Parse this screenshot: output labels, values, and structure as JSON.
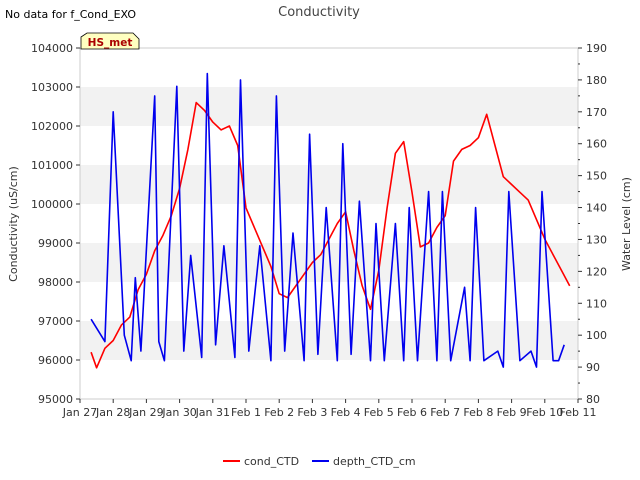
{
  "header": {
    "no_data_note": "No data for f_Cond_EXO",
    "badge": "HS_met"
  },
  "colors": {
    "cond": "#ff0000",
    "depth": "#0000ee",
    "band": "#f2f2f2",
    "badge_fill": "#ffffc0",
    "badge_text": "#aa0000"
  },
  "chart_data": {
    "type": "line",
    "title": "Conductivity",
    "xlabel": "",
    "ylabel": "Conductivity (uS/cm)",
    "ylabel_right": "Water Level (cm)",
    "xlim": [
      "2024-01-27",
      "2024-02-11"
    ],
    "ylim_left": [
      95000,
      104000
    ],
    "ylim_right": [
      80,
      190
    ],
    "x_ticks": [
      "Jan 27",
      "Jan 28",
      "Jan 29",
      "Jan 30",
      "Jan 31",
      "Feb 1",
      "Feb 2",
      "Feb 3",
      "Feb 4",
      "Feb 5",
      "Feb 6",
      "Feb 7",
      "Feb 8",
      "Feb 9",
      "Feb 10",
      "Feb 11"
    ],
    "y_ticks_left": [
      "95000",
      "96000",
      "97000",
      "98000",
      "99000",
      "100000",
      "101000",
      "102000",
      "103000",
      "104000"
    ],
    "y_ticks_right": [
      "80",
      "90",
      "100",
      "110",
      "120",
      "130",
      "140",
      "150",
      "160",
      "170",
      "180",
      "190"
    ],
    "grid": "alternating horizontal bands",
    "legend_position": "bottom-center",
    "series": [
      {
        "name": "cond_CTD",
        "axis": "left",
        "x": [
          "2024-01-27 08:00",
          "2024-01-27 12:00",
          "2024-01-27 18:00",
          "2024-01-28 00:00",
          "2024-01-28 06:00",
          "2024-01-28 12:00",
          "2024-01-28 18:00",
          "2024-01-29 00:00",
          "2024-01-29 06:00",
          "2024-01-29 12:00",
          "2024-01-29 18:00",
          "2024-01-30 00:00",
          "2024-01-30 06:00",
          "2024-01-30 12:00",
          "2024-01-30 18:00",
          "2024-01-31 00:00",
          "2024-01-31 06:00",
          "2024-01-31 12:00",
          "2024-01-31 18:00",
          "2024-02-01 00:00",
          "2024-02-01 06:00",
          "2024-02-01 12:00",
          "2024-02-01 18:00",
          "2024-02-02 00:00",
          "2024-02-02 06:00",
          "2024-02-02 12:00",
          "2024-02-02 18:00",
          "2024-02-03 00:00",
          "2024-02-03 06:00",
          "2024-02-03 12:00",
          "2024-02-03 18:00",
          "2024-02-04 00:00",
          "2024-02-04 06:00",
          "2024-02-04 12:00",
          "2024-02-04 18:00",
          "2024-02-05 00:00",
          "2024-02-05 06:00",
          "2024-02-05 12:00",
          "2024-02-05 18:00",
          "2024-02-06 00:00",
          "2024-02-06 06:00",
          "2024-02-06 12:00",
          "2024-02-06 18:00",
          "2024-02-07 00:00",
          "2024-02-07 06:00",
          "2024-02-07 12:00",
          "2024-02-07 18:00",
          "2024-02-08 00:00",
          "2024-02-08 06:00",
          "2024-02-08 12:00",
          "2024-02-08 18:00",
          "2024-02-09 00:00",
          "2024-02-09 06:00",
          "2024-02-09 12:00",
          "2024-02-09 18:00",
          "2024-02-10 00:00",
          "2024-02-10 06:00",
          "2024-02-10 12:00",
          "2024-02-10 18:00"
        ],
        "y": [
          96200,
          95800,
          96300,
          96500,
          96900,
          97100,
          97800,
          98200,
          98800,
          99200,
          99700,
          100400,
          101400,
          102600,
          102400,
          102100,
          101900,
          102000,
          101500,
          99900,
          99400,
          98900,
          98400,
          97700,
          97600,
          97900,
          98200,
          98500,
          98700,
          99100,
          99500,
          99800,
          98800,
          97900,
          97300,
          98300,
          99900,
          101300,
          101600,
          100300,
          98900,
          99000,
          99400,
          99700,
          101100,
          101400,
          101500,
          101700,
          102300,
          101500,
          100700,
          100500,
          100300,
          100100,
          99600,
          99100,
          98700,
          98300,
          97900
        ]
      },
      {
        "name": "depth_CTD_cm",
        "axis": "right",
        "x": [
          "2024-01-27 08:00",
          "2024-01-27 18:00",
          "2024-01-28 00:00",
          "2024-01-28 08:00",
          "2024-01-28 13:00",
          "2024-01-28 16:00",
          "2024-01-28 20:00",
          "2024-01-29 06:00",
          "2024-01-29 09:00",
          "2024-01-29 13:00",
          "2024-01-29 22:00",
          "2024-01-30 03:00",
          "2024-01-30 08:00",
          "2024-01-30 16:00",
          "2024-01-30 20:00",
          "2024-01-31 02:00",
          "2024-01-31 08:00",
          "2024-01-31 16:00",
          "2024-01-31 20:00",
          "2024-02-01 02:00",
          "2024-02-01 10:00",
          "2024-02-01 18:00",
          "2024-02-01 22:00",
          "2024-02-02 04:00",
          "2024-02-02 10:00",
          "2024-02-02 18:00",
          "2024-02-02 22:00",
          "2024-02-03 04:00",
          "2024-02-03 10:00",
          "2024-02-03 18:00",
          "2024-02-03 22:00",
          "2024-02-04 04:00",
          "2024-02-04 10:00",
          "2024-02-04 18:00",
          "2024-02-04 22:00",
          "2024-02-05 04:00",
          "2024-02-05 12:00",
          "2024-02-05 18:00",
          "2024-02-05 22:00",
          "2024-02-06 04:00",
          "2024-02-06 12:00",
          "2024-02-06 18:00",
          "2024-02-06 22:00",
          "2024-02-07 04:00",
          "2024-02-07 14:00",
          "2024-02-07 18:00",
          "2024-02-07 22:00",
          "2024-02-08 04:00",
          "2024-02-08 14:00",
          "2024-02-08 18:00",
          "2024-02-08 22:00",
          "2024-02-09 06:00",
          "2024-02-09 14:00",
          "2024-02-09 18:00",
          "2024-02-09 22:00",
          "2024-02-10 06:00",
          "2024-02-10 10:00",
          "2024-02-10 14:00"
        ],
        "y": [
          105,
          98,
          170,
          100,
          92,
          118,
          95,
          175,
          98,
          92,
          178,
          95,
          125,
          93,
          182,
          97,
          128,
          93,
          180,
          95,
          128,
          92,
          175,
          95,
          132,
          92,
          163,
          94,
          140,
          92,
          160,
          94,
          142,
          92,
          135,
          92,
          135,
          92,
          140,
          92,
          145,
          92,
          145,
          92,
          115,
          92,
          140,
          92,
          95,
          90,
          145,
          92,
          95,
          90,
          145,
          92,
          92,
          97
        ]
      }
    ]
  }
}
